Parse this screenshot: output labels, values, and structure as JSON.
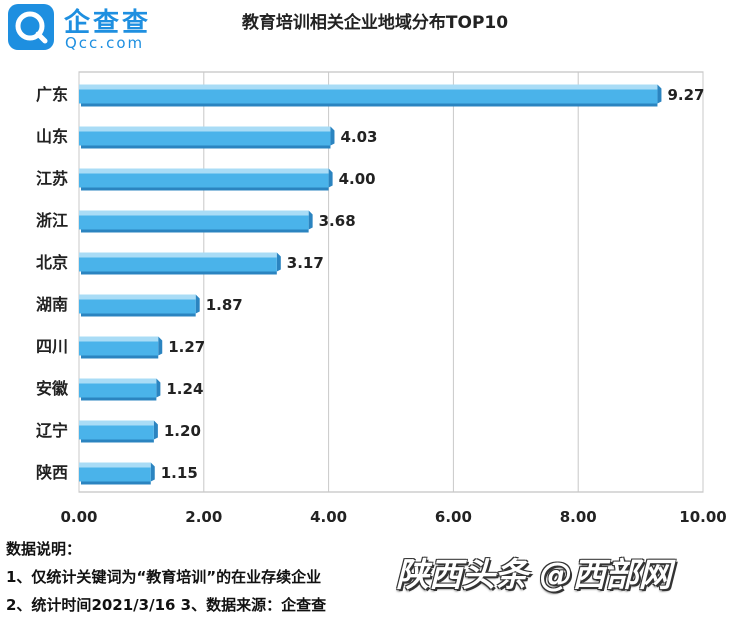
{
  "logo": {
    "cn": "企查查",
    "en": "Qcc.com"
  },
  "watermark": "陕西头条 @西部网",
  "chart_data": {
    "type": "bar",
    "orientation": "horizontal",
    "title": "教育培训相关企业地域分布TOP10",
    "categories": [
      "广东",
      "山东",
      "江苏",
      "浙江",
      "北京",
      "湖南",
      "四川",
      "安徽",
      "辽宁",
      "陕西"
    ],
    "values": [
      9.27,
      4.03,
      4.0,
      3.68,
      3.17,
      1.87,
      1.27,
      1.24,
      1.2,
      1.15
    ],
    "value_labels": [
      "9.27",
      "4.03",
      "4.00",
      "3.68",
      "3.17",
      "1.87",
      "1.27",
      "1.24",
      "1.20",
      "1.15"
    ],
    "xlim": [
      0,
      10
    ],
    "x_ticks": [
      "0.00",
      "2.00",
      "4.00",
      "6.00",
      "8.00",
      "10.00"
    ],
    "grid": "vertical",
    "bar_color": "#4ab3ea",
    "bar_top_color": "#a9dcf6",
    "bar_shadow_color": "#2b84c0"
  },
  "notes": {
    "heading": "数据说明：",
    "line1": "1、仅统计关键词为“教育培训”的在业存续企业",
    "line2": "2、统计时间2021/3/16   3、数据来源：企查查"
  }
}
